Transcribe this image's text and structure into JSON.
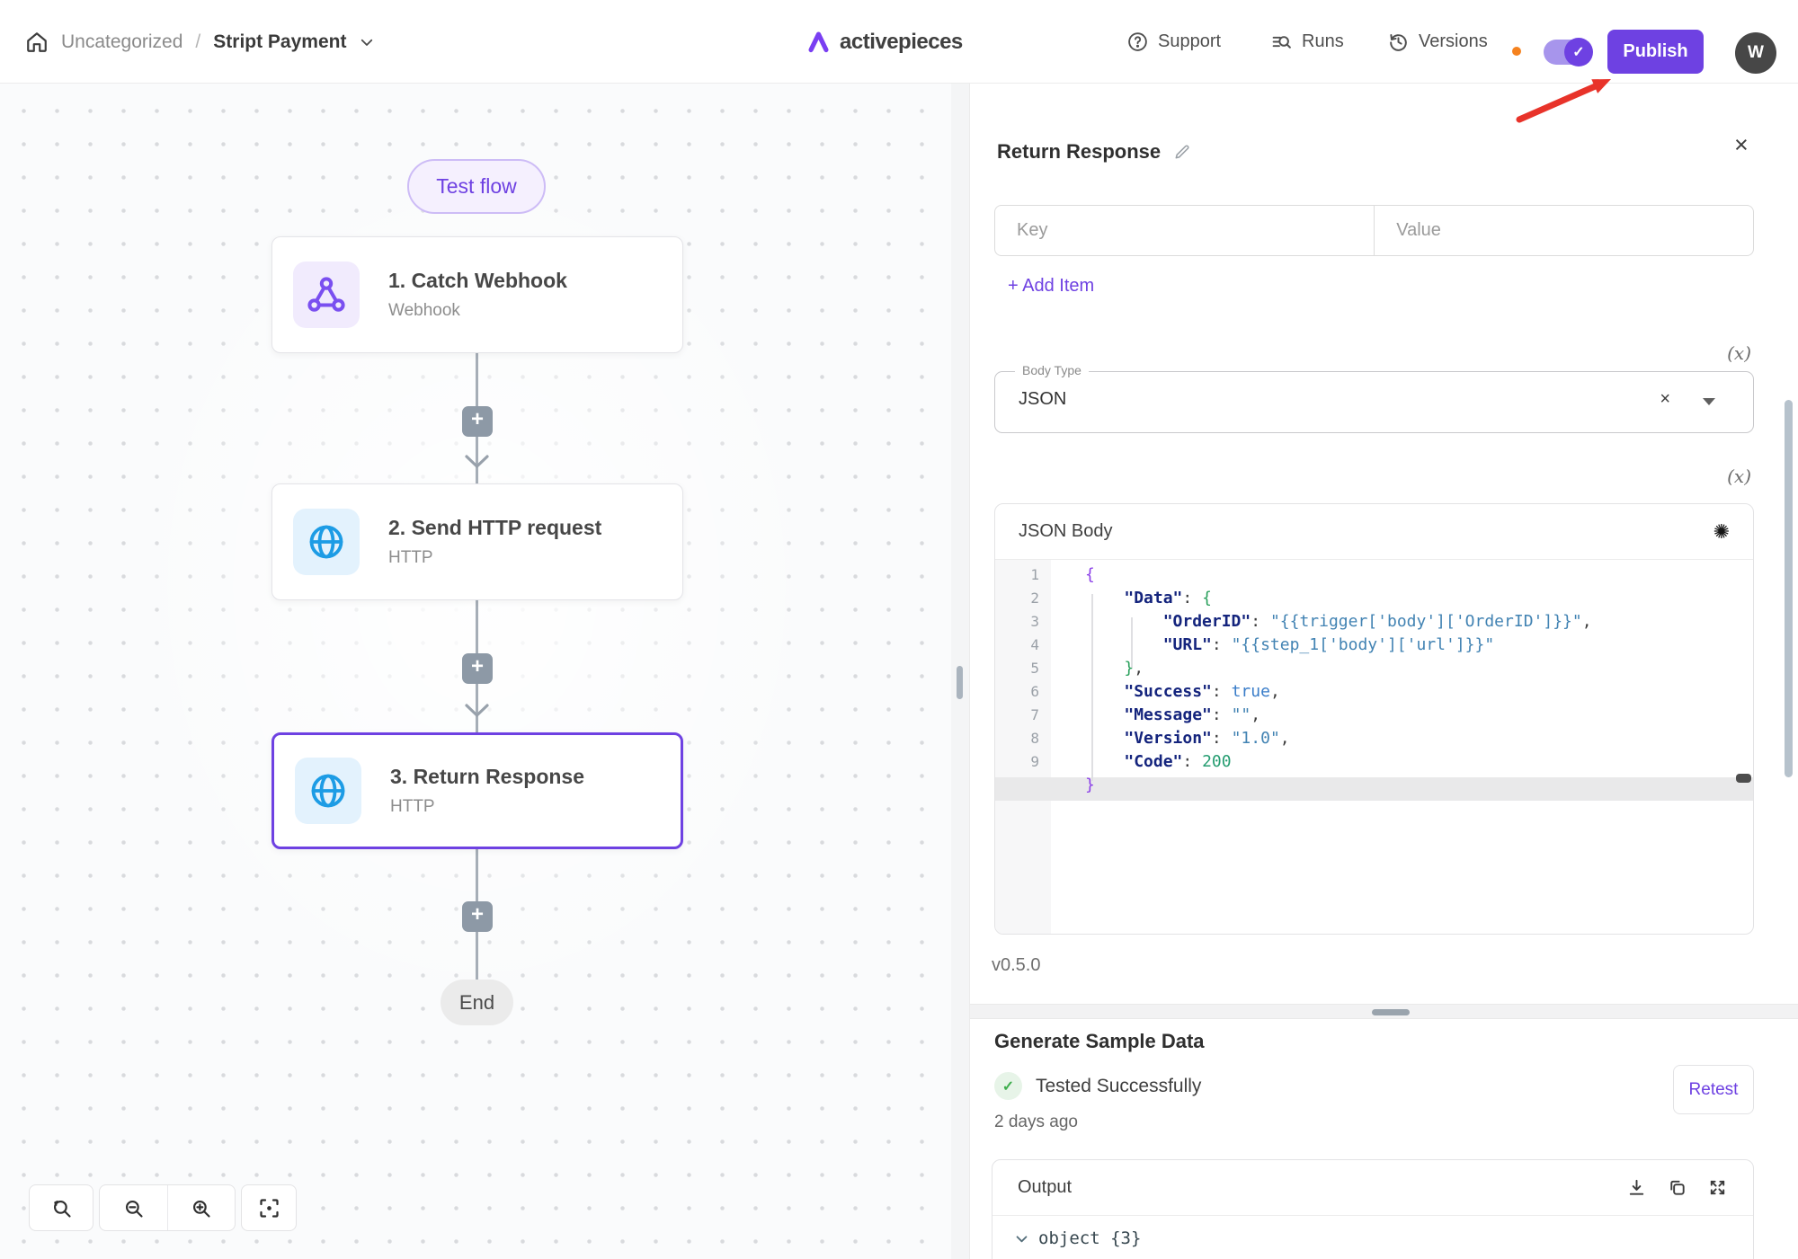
{
  "colors": {
    "accent": "#6e41e2",
    "arrow_red": "#e8332a",
    "http_blue": "#1d9ce5",
    "webhook_purple": "#7a4ff0",
    "success_green": "#3fae4e"
  },
  "topbar": {
    "breadcrumb": {
      "category": "Uncategorized",
      "separator": "/",
      "flow_name": "Stript Payment"
    },
    "brand": "activepieces",
    "nav_support": "Support",
    "nav_runs": "Runs",
    "nav_versions": "Versions",
    "publish_label": "Publish",
    "avatar_initial": "W"
  },
  "canvas": {
    "test_flow_label": "Test flow",
    "steps": [
      {
        "title": "1. Catch Webhook",
        "subtitle": "Webhook",
        "icon": "webhook-icon",
        "style": "purple",
        "selected": false
      },
      {
        "title": "2. Send HTTP request",
        "subtitle": "HTTP",
        "icon": "globe-icon",
        "style": "blue",
        "selected": false
      },
      {
        "title": "3. Return Response",
        "subtitle": "HTTP",
        "icon": "globe-icon",
        "style": "blue",
        "selected": true
      }
    ],
    "end_label": "End"
  },
  "panel": {
    "title": "Return Response",
    "close_glyph": "×",
    "key_placeholder": "Key",
    "value_placeholder": "Value",
    "add_item_label": "+ Add Item",
    "dynamic_toggle_label": "(x)",
    "body_type_label": "Body Type",
    "body_type_value": "JSON",
    "body_type_clear_glyph": "×",
    "json_body_title": "JSON Body",
    "code_lines": [
      "{",
      "    \"Data\": {",
      "        \"OrderID\": \"{{trigger['body']['OrderID']}}\",",
      "        \"URL\": \"{{step_1['body']['url']}}\"",
      "    },",
      "    \"Success\": true,",
      "    \"Message\": \"\",",
      "    \"Version\": \"1.0\",",
      "    \"Code\": 200",
      "}"
    ],
    "active_line": 10,
    "version": "v0.5.0",
    "sample_title": "Generate Sample Data",
    "sample_status": "Tested Successfully",
    "sample_time": "2 days ago",
    "retest_label": "Retest",
    "output_title": "Output",
    "output_node": "object {3}"
  }
}
